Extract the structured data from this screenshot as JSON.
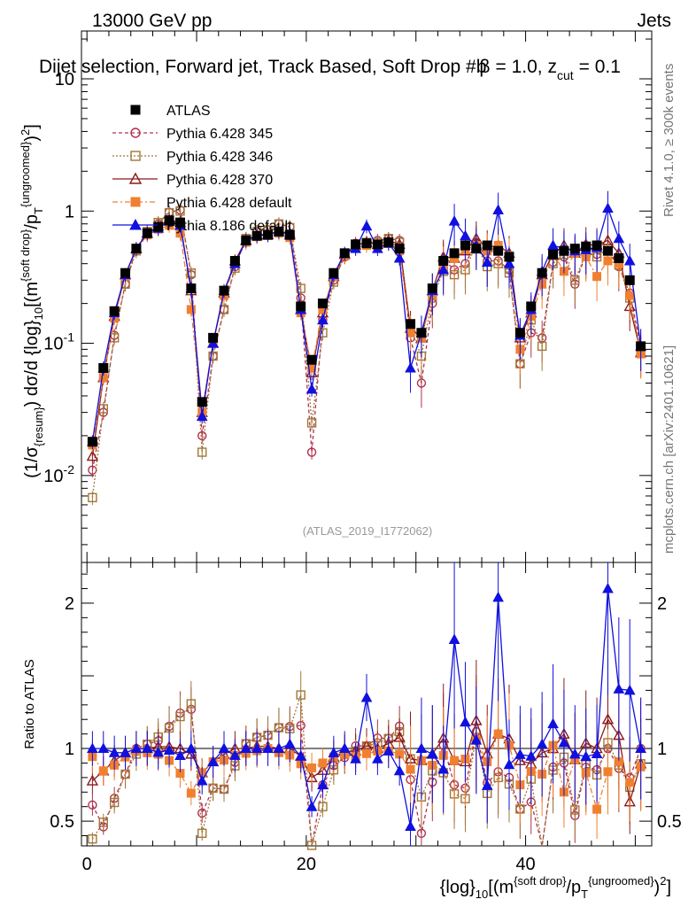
{
  "header": {
    "energy": "13000 GeV pp",
    "process": "Jets",
    "title": "Dijet selection, Forward jet, Track Based, Soft Drop #b",
    "title_params": "= 1.0, z",
    "beta_char": "β",
    "cut_sub": "cut",
    "cut_tail": "= 0.1"
  },
  "side": {
    "rivet": "Rivet 4.1.0, ≥ 300k events",
    "mcplots": "mcplots.cern.ch [arXiv:2401.10621]"
  },
  "watermark": "(ATLAS_2019_I1772062)",
  "axes": {
    "main_ylabel": "(1/σ_{resum}) dσ/d {log}_{10}[(m^{soft drop}/p_T^{ungroomed})^2]",
    "ratio_ylabel": "Ratio to ATLAS",
    "xlabel": "{log}_{10}[(m^{soft drop}/p_T^{ungroomed})^2]",
    "xticks": [
      "0",
      "20",
      "40"
    ],
    "yticks_main": [
      "10^{-2}",
      "10^{-1}",
      "1",
      "10"
    ],
    "yticks_ratio": [
      "0.5",
      "1",
      "2"
    ]
  },
  "legend": [
    {
      "label": "ATLAS",
      "color": "#000000",
      "marker": "square-filled",
      "dash": ""
    },
    {
      "label": "Pythia 6.428 345",
      "color": "#b03050",
      "marker": "circle-open",
      "dash": "4,3"
    },
    {
      "label": "Pythia 6.428 346",
      "color": "#a07838",
      "marker": "square-open",
      "dash": "2,2"
    },
    {
      "label": "Pythia 6.428 370",
      "color": "#8b1a1a",
      "marker": "triangle-open",
      "dash": ""
    },
    {
      "label": "Pythia 6.428 default",
      "color": "#f08030",
      "marker": "square-filled",
      "dash": "6,3,2,3"
    },
    {
      "label": "Pythia 8.186 default",
      "color": "#1010e0",
      "marker": "triangle-filled",
      "dash": ""
    }
  ],
  "chart_data": {
    "type": "scatter",
    "xlim": [
      -0.5,
      51.5
    ],
    "ylim_main": [
      0.0022,
      23
    ],
    "ylim_ratio": [
      0.33,
      2.28
    ],
    "x": [
      0.5,
      1.5,
      2.5,
      3.5,
      4.5,
      5.5,
      6.5,
      7.5,
      8.5,
      9.5,
      10.5,
      11.5,
      12.5,
      13.5,
      14.5,
      15.5,
      16.5,
      17.5,
      18.5,
      19.5,
      20.5,
      21.5,
      22.5,
      23.5,
      24.5,
      25.5,
      26.5,
      27.5,
      28.5,
      29.5,
      30.5,
      31.5,
      32.5,
      33.5,
      34.5,
      35.5,
      36.5,
      37.5,
      38.5,
      39.5,
      40.5,
      41.5,
      42.5,
      43.5,
      44.5,
      45.5,
      46.5,
      47.5,
      48.5,
      49.5,
      50.5
    ],
    "series": [
      {
        "name": "ATLAS",
        "values": [
          0.018,
          0.065,
          0.175,
          0.34,
          0.52,
          0.68,
          0.76,
          0.85,
          0.82,
          0.26,
          0.036,
          0.11,
          0.25,
          0.42,
          0.6,
          0.65,
          0.66,
          0.7,
          0.66,
          0.19,
          0.075,
          0.2,
          0.34,
          0.48,
          0.56,
          0.57,
          0.56,
          0.58,
          0.52,
          0.14,
          0.12,
          0.26,
          0.42,
          0.48,
          0.55,
          0.52,
          0.55,
          0.5,
          0.45,
          0.12,
          0.19,
          0.34,
          0.47,
          0.5,
          0.52,
          0.54,
          0.55,
          0.5,
          0.44,
          0.3,
          0.095
        ]
      },
      {
        "name": "Pythia 6.428 345",
        "values": [
          0.011,
          0.03,
          0.115,
          0.28,
          0.52,
          0.7,
          0.8,
          0.98,
          1.02,
          0.33,
          0.02,
          0.08,
          0.18,
          0.38,
          0.62,
          0.7,
          0.72,
          0.8,
          0.76,
          0.22,
          0.015,
          0.15,
          0.3,
          0.45,
          0.57,
          0.58,
          0.6,
          0.62,
          0.6,
          0.11,
          0.05,
          0.2,
          0.43,
          0.36,
          0.4,
          0.58,
          0.42,
          0.42,
          0.36,
          0.07,
          0.12,
          0.11,
          0.41,
          0.45,
          0.28,
          0.47,
          0.47,
          0.5,
          0.38,
          0.24,
          0.095
        ]
      },
      {
        "name": "Pythia 6.428 346",
        "values": [
          0.0068,
          0.032,
          0.11,
          0.28,
          0.5,
          0.7,
          0.82,
          0.97,
          1.0,
          0.34,
          0.015,
          0.08,
          0.18,
          0.37,
          0.62,
          0.7,
          0.72,
          0.8,
          0.75,
          0.26,
          0.025,
          0.12,
          0.29,
          0.46,
          0.55,
          0.58,
          0.58,
          0.62,
          0.58,
          0.13,
          0.08,
          0.22,
          0.35,
          0.33,
          0.36,
          0.56,
          0.38,
          0.4,
          0.34,
          0.07,
          0.15,
          0.095,
          0.4,
          0.47,
          0.3,
          0.48,
          0.45,
          0.52,
          0.39,
          0.22,
          0.085
        ]
      },
      {
        "name": "Pythia 6.428 370",
        "values": [
          0.014,
          0.055,
          0.16,
          0.33,
          0.52,
          0.68,
          0.77,
          0.86,
          0.82,
          0.25,
          0.03,
          0.1,
          0.24,
          0.42,
          0.6,
          0.66,
          0.67,
          0.7,
          0.66,
          0.18,
          0.06,
          0.17,
          0.32,
          0.47,
          0.55,
          0.58,
          0.56,
          0.6,
          0.56,
          0.13,
          0.11,
          0.25,
          0.45,
          0.44,
          0.5,
          0.62,
          0.53,
          0.55,
          0.48,
          0.11,
          0.17,
          0.33,
          0.47,
          0.55,
          0.48,
          0.56,
          0.55,
          0.6,
          0.48,
          0.19,
          0.085
        ]
      },
      {
        "name": "Pythia 6.428 default",
        "values": [
          0.017,
          0.055,
          0.155,
          0.32,
          0.51,
          0.66,
          0.73,
          0.78,
          0.68,
          0.18,
          0.03,
          0.1,
          0.23,
          0.4,
          0.58,
          0.64,
          0.66,
          0.68,
          0.63,
          0.17,
          0.065,
          0.18,
          0.32,
          0.46,
          0.53,
          0.55,
          0.55,
          0.57,
          0.5,
          0.12,
          0.11,
          0.23,
          0.4,
          0.44,
          0.51,
          0.55,
          0.5,
          0.55,
          0.46,
          0.09,
          0.16,
          0.28,
          0.48,
          0.35,
          0.48,
          0.45,
          0.32,
          0.42,
          0.4,
          0.23,
          0.083
        ]
      },
      {
        "name": "Pythia 8.186 default",
        "values": [
          0.018,
          0.065,
          0.17,
          0.33,
          0.52,
          0.68,
          0.74,
          0.84,
          0.78,
          0.26,
          0.028,
          0.1,
          0.25,
          0.4,
          0.6,
          0.65,
          0.66,
          0.7,
          0.68,
          0.18,
          0.045,
          0.15,
          0.33,
          0.48,
          0.52,
          0.77,
          0.52,
          0.57,
          0.44,
          0.065,
          0.12,
          0.25,
          0.36,
          0.84,
          0.65,
          0.55,
          0.41,
          1.02,
          0.4,
          0.115,
          0.18,
          0.35,
          0.55,
          0.52,
          0.5,
          0.51,
          0.53,
          1.05,
          0.62,
          0.42,
          0.095
        ]
      }
    ]
  }
}
